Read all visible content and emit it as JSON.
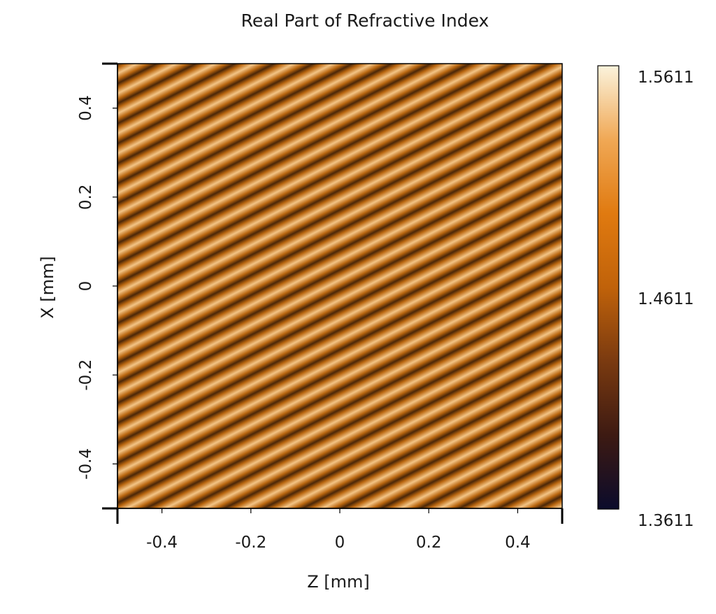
{
  "chart_data": {
    "type": "heatmap",
    "title": "Real Part of Refractive Index",
    "xlabel": "Z [mm]",
    "ylabel": "X [mm]",
    "xlim": [
      -0.5,
      0.5
    ],
    "ylim": [
      -0.5,
      0.5
    ],
    "x_ticks": [
      -0.4,
      -0.2,
      0,
      0.2,
      0.4
    ],
    "x_tick_labels": [
      "-0.4",
      "-0.2",
      "0",
      "0.2",
      "0.4"
    ],
    "y_ticks": [
      -0.4,
      -0.2,
      0,
      0.2,
      0.4
    ],
    "y_tick_labels": [
      "-0.4",
      "-0.2",
      "0",
      "0.2",
      "0.4"
    ],
    "colorbar": {
      "min": 1.3611,
      "max": 1.5611,
      "ticks": [
        1.3611,
        1.4611,
        1.5611
      ],
      "tick_labels": [
        "1.3611",
        "1.4611",
        "1.5611"
      ],
      "colormap": [
        "#0b0b2b",
        "#3d1a12",
        "#7a3a10",
        "#c0620a",
        "#e07a10",
        "#f0a855",
        "#fbf3dc"
      ]
    },
    "pattern": {
      "description_type": "sinusoidal grating",
      "period_count_along_z": 25,
      "slope": 0.5,
      "stripe_dark": "#4a2608",
      "stripe_mid": "#b9660f",
      "stripe_light": "#f3c486"
    },
    "grid": false,
    "legend": "colorbar-right"
  }
}
